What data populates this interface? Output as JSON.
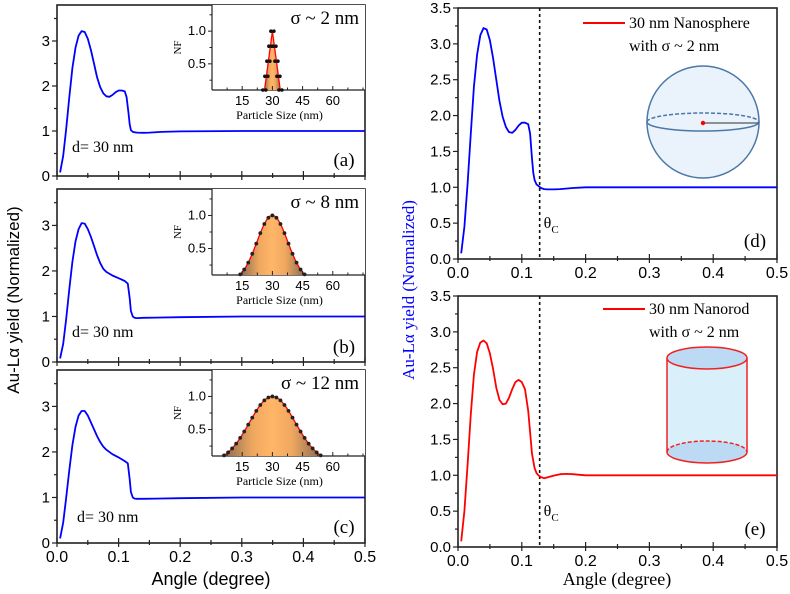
{
  "chart_data": [
    {
      "id": "a",
      "type": "line",
      "panel_label": "(a)",
      "annotation": "d= 30 nm",
      "xlim": [
        0,
        0.5
      ],
      "ylim": [
        0,
        3.8
      ],
      "yticks": [
        0,
        1,
        2,
        3
      ],
      "ytick_labels": [
        "0",
        "1",
        "2",
        "3"
      ],
      "series": [
        {
          "name": "d = 30 nm",
          "color": "#0000ff",
          "x": [
            0.005,
            0.01,
            0.015,
            0.02,
            0.025,
            0.03,
            0.035,
            0.04,
            0.045,
            0.05,
            0.055,
            0.06,
            0.065,
            0.07,
            0.075,
            0.08,
            0.085,
            0.09,
            0.095,
            0.1,
            0.105,
            0.11,
            0.113,
            0.116,
            0.118,
            0.12,
            0.123,
            0.126,
            0.13,
            0.14,
            0.15,
            0.17,
            0.2,
            0.3,
            0.4,
            0.5
          ],
          "y": [
            0.08,
            0.45,
            1.05,
            1.75,
            2.4,
            2.85,
            3.12,
            3.22,
            3.2,
            3.05,
            2.8,
            2.5,
            2.2,
            1.98,
            1.84,
            1.77,
            1.76,
            1.8,
            1.86,
            1.9,
            1.9,
            1.88,
            1.75,
            1.4,
            1.15,
            1.02,
            0.98,
            0.97,
            0.965,
            0.96,
            0.965,
            0.98,
            0.99,
            1.0,
            1.0,
            1.0
          ]
        }
      ],
      "inset": {
        "title": "σ ~ 2 nm",
        "xlabel": "Particle Size (nm)",
        "ylabel": "NF",
        "xticks": [
          15,
          30,
          45,
          60
        ],
        "xtick_labels": [
          "15",
          "30",
          "45",
          "60"
        ],
        "yticks": [
          0.5,
          1.0
        ],
        "ytick_labels": [
          "0.5",
          "1.0"
        ],
        "xlim": [
          0,
          76
        ],
        "ylim": [
          0.1,
          1.4
        ],
        "mean": 30,
        "sigma": 2,
        "range": [
          26,
          34
        ]
      }
    },
    {
      "id": "b",
      "type": "line",
      "panel_label": "(b)",
      "annotation": "d= 30 nm",
      "xlim": [
        0,
        0.5
      ],
      "ylim": [
        0,
        3.8
      ],
      "yticks": [
        0,
        1,
        2,
        3
      ],
      "ytick_labels": [
        "0",
        "1",
        "2",
        "3"
      ],
      "series": [
        {
          "name": "d = 30 nm",
          "color": "#0000ff",
          "x": [
            0.005,
            0.01,
            0.015,
            0.02,
            0.025,
            0.03,
            0.035,
            0.04,
            0.045,
            0.05,
            0.055,
            0.06,
            0.065,
            0.07,
            0.075,
            0.08,
            0.09,
            0.1,
            0.11,
            0.115,
            0.118,
            0.12,
            0.123,
            0.126,
            0.13,
            0.14,
            0.16,
            0.2,
            0.3,
            0.4,
            0.5
          ],
          "y": [
            0.08,
            0.4,
            0.95,
            1.6,
            2.2,
            2.65,
            2.92,
            3.05,
            3.04,
            2.92,
            2.75,
            2.55,
            2.35,
            2.18,
            2.05,
            1.98,
            1.9,
            1.84,
            1.78,
            1.72,
            1.4,
            1.12,
            1.0,
            0.97,
            0.965,
            0.97,
            0.975,
            0.985,
            1.0,
            1.0,
            1.0
          ]
        }
      ],
      "inset": {
        "title": "σ ~ 8 nm",
        "xlabel": "Particle Size (nm)",
        "ylabel": "NF",
        "xticks": [
          15,
          30,
          45,
          60
        ],
        "xtick_labels": [
          "15",
          "30",
          "45",
          "60"
        ],
        "yticks": [
          0.5,
          1.0
        ],
        "ytick_labels": [
          "0.5",
          "1.0"
        ],
        "xlim": [
          0,
          76
        ],
        "ylim": [
          0.1,
          1.4
        ],
        "mean": 30,
        "sigma": 8,
        "range": [
          14,
          46
        ]
      }
    },
    {
      "id": "c",
      "type": "line",
      "panel_label": "(c)",
      "annotation": "d= 30 nm",
      "xlim": [
        0,
        0.5
      ],
      "ylim": [
        0,
        3.8
      ],
      "yticks": [
        0,
        1,
        2,
        3
      ],
      "ytick_labels": [
        "0",
        "1",
        "2",
        "3"
      ],
      "xticks": [
        0,
        0.1,
        0.2,
        0.3,
        0.4,
        0.5
      ],
      "xtick_labels": [
        "0.0",
        "0.1",
        "0.2",
        "0.3",
        "0.4",
        "0.5"
      ],
      "xlabel": "Angle (degree)",
      "series": [
        {
          "name": "d = 30 nm",
          "color": "#0000ff",
          "x": [
            0.005,
            0.01,
            0.015,
            0.02,
            0.025,
            0.03,
            0.035,
            0.04,
            0.045,
            0.05,
            0.055,
            0.06,
            0.065,
            0.07,
            0.075,
            0.08,
            0.09,
            0.1,
            0.11,
            0.115,
            0.118,
            0.12,
            0.123,
            0.126,
            0.13,
            0.14,
            0.16,
            0.2,
            0.3,
            0.4,
            0.5
          ],
          "y": [
            0.1,
            0.45,
            1.0,
            1.6,
            2.15,
            2.55,
            2.8,
            2.9,
            2.9,
            2.8,
            2.65,
            2.5,
            2.35,
            2.22,
            2.12,
            2.05,
            1.95,
            1.88,
            1.8,
            1.75,
            1.4,
            1.12,
            1.0,
            0.975,
            0.97,
            0.97,
            0.975,
            0.985,
            1.0,
            1.0,
            1.0
          ]
        }
      ],
      "inset": {
        "title": "σ ~ 12 nm",
        "xlabel": "Particle Size (nm)",
        "ylabel": "NF",
        "xticks": [
          15,
          30,
          45,
          60
        ],
        "xtick_labels": [
          "15",
          "30",
          "45",
          "60"
        ],
        "yticks": [
          0.5,
          1.0
        ],
        "ytick_labels": [
          "0.5",
          "1.0"
        ],
        "xlim": [
          0,
          76
        ],
        "ylim": [
          0.1,
          1.4
        ],
        "mean": 30,
        "sigma": 12,
        "range": [
          6,
          54
        ]
      }
    },
    {
      "id": "d",
      "type": "line",
      "panel_label": "(d)",
      "xlim": [
        0,
        0.5
      ],
      "ylim": [
        0,
        3.5
      ],
      "yticks": [
        0,
        0.5,
        1.0,
        1.5,
        2.0,
        2.5,
        3.0,
        3.5
      ],
      "ytick_labels": [
        "0.0",
        "0.5",
        "1.0",
        "1.5",
        "2.0",
        "2.5",
        "3.0",
        "3.5"
      ],
      "xticks": [
        0,
        0.1,
        0.2,
        0.3,
        0.4,
        0.5
      ],
      "xtick_labels": [
        "0.0",
        "0.1",
        "0.2",
        "0.3",
        "0.4",
        "0.5"
      ],
      "critical_angle": {
        "x": 0.128,
        "label": "θ",
        "subscript": "C"
      },
      "legend": {
        "line_color": "#ff0000",
        "lines": [
          "30 nm Nanosphere",
          "with σ ~ 2 nm"
        ],
        "placement": "top-right"
      },
      "shape": "sphere",
      "series": [
        {
          "name": "30 nm Nanosphere with σ ~ 2 nm",
          "color": "#0000ff",
          "x": [
            0.005,
            0.01,
            0.015,
            0.02,
            0.025,
            0.03,
            0.035,
            0.04,
            0.045,
            0.05,
            0.055,
            0.06,
            0.065,
            0.07,
            0.075,
            0.08,
            0.085,
            0.09,
            0.095,
            0.1,
            0.105,
            0.11,
            0.113,
            0.116,
            0.118,
            0.12,
            0.123,
            0.126,
            0.13,
            0.135,
            0.14,
            0.15,
            0.16,
            0.18,
            0.2,
            0.3,
            0.4,
            0.5
          ],
          "y": [
            0.08,
            0.45,
            1.05,
            1.75,
            2.4,
            2.85,
            3.12,
            3.22,
            3.2,
            3.05,
            2.8,
            2.5,
            2.2,
            1.98,
            1.84,
            1.77,
            1.76,
            1.8,
            1.86,
            1.9,
            1.9,
            1.88,
            1.75,
            1.4,
            1.2,
            1.1,
            1.04,
            1.02,
            0.99,
            0.975,
            0.97,
            0.97,
            0.975,
            0.99,
            1.0,
            1.0,
            1.0,
            1.0
          ]
        }
      ]
    },
    {
      "id": "e",
      "type": "line",
      "panel_label": "(e)",
      "xlim": [
        0,
        0.5
      ],
      "ylim": [
        0,
        3.5
      ],
      "yticks": [
        0,
        0.5,
        1.0,
        1.5,
        2.0,
        2.5,
        3.0,
        3.5
      ],
      "ytick_labels": [
        "0.0",
        "0.5",
        "1.0",
        "1.5",
        "2.0",
        "2.5",
        "3.0",
        "3.5"
      ],
      "xticks": [
        0,
        0.1,
        0.2,
        0.3,
        0.4,
        0.5
      ],
      "xtick_labels": [
        "0.0",
        "0.1",
        "0.2",
        "0.3",
        "0.4",
        "0.5"
      ],
      "xlabel": "Angle (degree)",
      "critical_angle": {
        "x": 0.128,
        "label": "θ",
        "subscript": "C"
      },
      "legend": {
        "line_color": "#ff0000",
        "lines": [
          "30 nm Nanorod",
          "with σ ~ 2 nm"
        ],
        "placement": "top-right"
      },
      "shape": "cylinder",
      "series": [
        {
          "name": "30 nm Nanorod with σ ~ 2 nm",
          "color": "#ff0000",
          "x": [
            0.005,
            0.01,
            0.015,
            0.02,
            0.025,
            0.03,
            0.035,
            0.04,
            0.045,
            0.05,
            0.055,
            0.06,
            0.065,
            0.07,
            0.075,
            0.08,
            0.085,
            0.09,
            0.095,
            0.1,
            0.105,
            0.11,
            0.113,
            0.116,
            0.12,
            0.123,
            0.126,
            0.13,
            0.135,
            0.14,
            0.15,
            0.16,
            0.17,
            0.18,
            0.2,
            0.25,
            0.3,
            0.4,
            0.5
          ],
          "y": [
            0.08,
            0.5,
            1.15,
            1.85,
            2.4,
            2.72,
            2.85,
            2.88,
            2.84,
            2.7,
            2.48,
            2.22,
            2.05,
            1.99,
            2.0,
            2.08,
            2.2,
            2.3,
            2.33,
            2.3,
            2.2,
            1.9,
            1.6,
            1.3,
            1.1,
            1.03,
            1.0,
            0.975,
            0.96,
            0.97,
            0.995,
            1.015,
            1.02,
            1.015,
            1.0,
            1.0,
            1.0,
            1.0,
            1.0
          ]
        }
      ]
    }
  ],
  "labels": {
    "left_ylabel": "Au-Lα yield (Normalized)",
    "right_ylabel": "Au-Lα yield (Normalized)",
    "left_xlabel": "Angle (degree)",
    "right_xlabel": "Angle (degree)"
  }
}
